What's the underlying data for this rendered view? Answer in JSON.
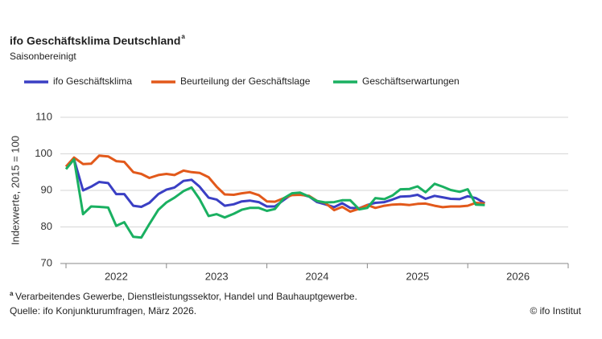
{
  "chart_data": {
    "type": "line",
    "title": "ifo Geschäftsklima Deutschland",
    "title_note": "a",
    "subtitle": "Saisonbereinigt",
    "y_label": "Indexwerte, 2015 = 100",
    "x": [
      2022.0,
      2022.08,
      2022.17,
      2022.25,
      2022.33,
      2022.42,
      2022.5,
      2022.58,
      2022.67,
      2022.75,
      2022.83,
      2022.92,
      2023.0,
      2023.08,
      2023.17,
      2023.25,
      2023.33,
      2023.42,
      2023.5,
      2023.58,
      2023.67,
      2023.75,
      2023.83,
      2023.92,
      2024.0,
      2024.08,
      2024.17,
      2024.25,
      2024.33,
      2024.42,
      2024.5,
      2024.58,
      2024.67,
      2024.75,
      2024.83,
      2024.92,
      2025.0,
      2025.08,
      2025.17,
      2025.25,
      2025.33,
      2025.42,
      2025.5,
      2025.58,
      2025.67,
      2025.75,
      2025.83,
      2025.92,
      2026.0,
      2026.08,
      2026.17
    ],
    "xlim": [
      2022,
      2027
    ],
    "xticks": [
      2022,
      2023,
      2024,
      2025,
      2026,
      2027
    ],
    "x_labels": [
      "2022",
      "2023",
      "2024",
      "2025",
      "2026"
    ],
    "ylim": [
      70,
      110
    ],
    "yticks": [
      70,
      80,
      90,
      100,
      110
    ],
    "grid": true,
    "series": [
      {
        "name": "ifo Geschäftsklima",
        "color": "#3a3fc4",
        "values": [
          96.5,
          98.5,
          90,
          91,
          92.3,
          92,
          89,
          89,
          85.8,
          85.5,
          86.6,
          89,
          90.2,
          90.8,
          92.6,
          92.9,
          91,
          88,
          87.5,
          85.8,
          86.2,
          87,
          87.2,
          86.8,
          85.6,
          85.6,
          87.4,
          89,
          89,
          88.3,
          86.8,
          86.2,
          85.4,
          86.5,
          85.2,
          85.1,
          86,
          86.6,
          86.8,
          87.5,
          88.3,
          88.4,
          88.8,
          87.7,
          88.5,
          88.1,
          87.7,
          87.6,
          88.4,
          87.9,
          86.5
        ]
      },
      {
        "name": "Beurteilung der Geschäftslage",
        "color": "#e2591b",
        "values": [
          96.5,
          99,
          97.2,
          97.3,
          99.5,
          99.3,
          98,
          97.8,
          95,
          94.5,
          93.4,
          94.2,
          94.5,
          94.2,
          95.4,
          95,
          94.8,
          93.6,
          91,
          88.9,
          88.8,
          89.2,
          89.5,
          88.7,
          87,
          86.9,
          87.9,
          88.7,
          88.8,
          88.5,
          87.1,
          86.6,
          84.6,
          85.5,
          84.2,
          85,
          86,
          85.2,
          85.8,
          86.1,
          86.2,
          86,
          86.3,
          86.4,
          85.8,
          85.4,
          85.6,
          85.6,
          85.8,
          86.6,
          86.4
        ]
      },
      {
        "name": "Geschäftserwartungen",
        "color": "#1ab061",
        "values": [
          95.8,
          98.5,
          83.5,
          85.6,
          85.5,
          85.3,
          80.3,
          81.3,
          77.3,
          77.1,
          80.8,
          84.7,
          86.7,
          88,
          89.8,
          90.8,
          87.6,
          83,
          83.5,
          82.6,
          83.6,
          84.7,
          85.2,
          85.2,
          84.4,
          84.9,
          87.9,
          89.2,
          89.4,
          88.3,
          87.1,
          86.7,
          86.8,
          87.3,
          87.3,
          84.8,
          85.2,
          87.9,
          87.6,
          88.6,
          90.3,
          90.4,
          91.1,
          89.5,
          91.8,
          91,
          90.1,
          89.6,
          90.3,
          86.1,
          86
        ]
      }
    ],
    "footnote_marker": "a",
    "footnote": "Verarbeitendes Gewerbe, Dienstleistungssektor, Handel und Bauhauptgewerbe.",
    "source": "Quelle: ifo Konjunkturumfragen, März 2026.",
    "copyright": "© ifo Institut"
  }
}
